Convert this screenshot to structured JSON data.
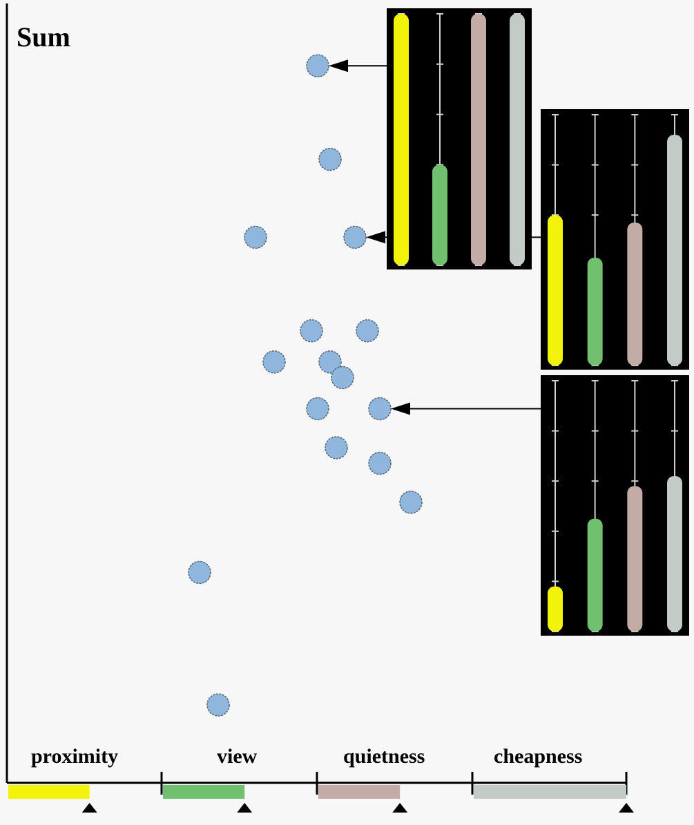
{
  "chart_data": {
    "type": "scatter",
    "ylabel": "Sum",
    "criteria": [
      {
        "name": "proximity",
        "color": "#f2f20a",
        "fill": 0.53,
        "marker": 0.53
      },
      {
        "name": "view",
        "color": "#70c070",
        "fill": 0.53,
        "marker": 0.53
      },
      {
        "name": "quietness",
        "color": "#c4aca6",
        "fill": 0.53,
        "marker": 0.53
      },
      {
        "name": "cheapness",
        "color": "#c2cbc5",
        "fill": 1.0,
        "marker": 1.0
      }
    ],
    "points": [
      {
        "x": 0.5,
        "y": 0.92
      },
      {
        "x": 0.52,
        "y": 0.8
      },
      {
        "x": 0.4,
        "y": 0.7
      },
      {
        "x": 0.56,
        "y": 0.7
      },
      {
        "x": 0.49,
        "y": 0.58
      },
      {
        "x": 0.58,
        "y": 0.58
      },
      {
        "x": 0.43,
        "y": 0.54
      },
      {
        "x": 0.52,
        "y": 0.54
      },
      {
        "x": 0.54,
        "y": 0.52
      },
      {
        "x": 0.5,
        "y": 0.48
      },
      {
        "x": 0.6,
        "y": 0.48
      },
      {
        "x": 0.53,
        "y": 0.43
      },
      {
        "x": 0.6,
        "y": 0.41
      },
      {
        "x": 0.65,
        "y": 0.36
      },
      {
        "x": 0.31,
        "y": 0.27
      },
      {
        "x": 0.34,
        "y": 0.1
      }
    ],
    "insets": [
      {
        "target": 0,
        "values": [
          1.0,
          0.4,
          1.0,
          1.0
        ]
      },
      {
        "target": 3,
        "values": [
          0.6,
          0.43,
          0.57,
          0.92
        ]
      },
      {
        "target": 10,
        "values": [
          0.18,
          0.45,
          0.58,
          0.62
        ]
      }
    ]
  },
  "colors": {
    "point_fill": "#8fb6dc",
    "point_stroke": "#556677",
    "axis": "#000000",
    "inset_bg": "#000000",
    "inset_track": "#d0d0d0"
  }
}
